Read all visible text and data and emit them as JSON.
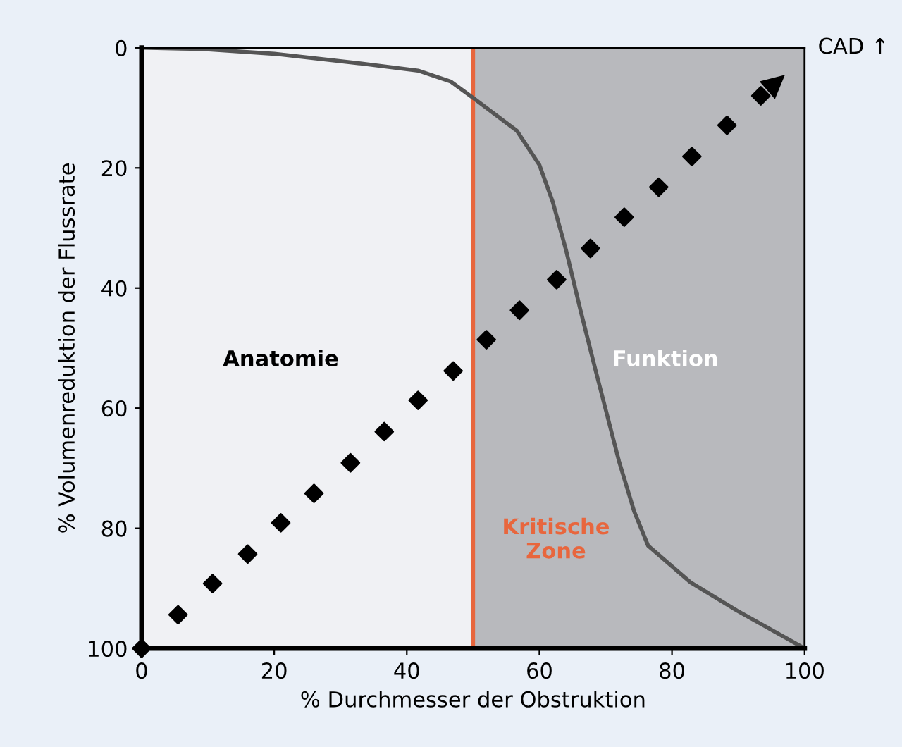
{
  "chart_data": {
    "type": "line",
    "xlabel": "% Durchmesser der Obstruktion",
    "ylabel": "% Volumenreduktion der Flussrate",
    "xlim": [
      0,
      100
    ],
    "ylim": [
      100,
      0
    ],
    "xticks": [
      0,
      20,
      40,
      60,
      80,
      100
    ],
    "yticks": [
      0,
      20,
      40,
      60,
      80,
      100
    ],
    "grid": false,
    "series": [
      {
        "color": "#555555",
        "marker": "none",
        "x": [
          0,
          9,
          20,
          33,
          41.7,
          46.6,
          50.2,
          56.6,
          60,
          62,
          64,
          66.2,
          68.5,
          72,
          74.3,
          76.4,
          82.8,
          89.8,
          100
        ],
        "values": [
          0,
          0.2,
          1,
          2.6,
          3.8,
          5.6,
          8.5,
          13.8,
          19.5,
          25.6,
          33.6,
          43.7,
          53.8,
          68.8,
          77.2,
          82.9,
          89,
          93.7,
          100
        ]
      },
      {
        "type": "scatter",
        "color": "#000000",
        "marker": "diamond",
        "x": [
          0,
          5.5,
          10.7,
          16,
          21,
          26,
          31.5,
          36.6,
          41.7,
          47,
          52,
          57,
          62.6,
          67.7,
          72.8,
          78,
          83,
          88.3,
          93.4
        ],
        "values": [
          100,
          94.4,
          89.2,
          84.3,
          79.1,
          74.2,
          69.1,
          63.9,
          58.7,
          53.8,
          48.6,
          43.7,
          38.6,
          33.4,
          28.2,
          23.2,
          18.1,
          12.9,
          8
        ]
      }
    ],
    "bands": [
      {
        "axis": "x",
        "from": 0,
        "to": 50,
        "label": "Anatomie",
        "color": "#f0f1f4"
      },
      {
        "axis": "x",
        "from": 50,
        "to": 100,
        "label": "Funktion",
        "color": "#b8b9bd"
      }
    ],
    "ref_lines": [
      {
        "axis": "x",
        "value": 50,
        "label": "Kritische Zone",
        "color": "#e8663d"
      }
    ],
    "annotations": [
      "CAD ↑"
    ]
  }
}
